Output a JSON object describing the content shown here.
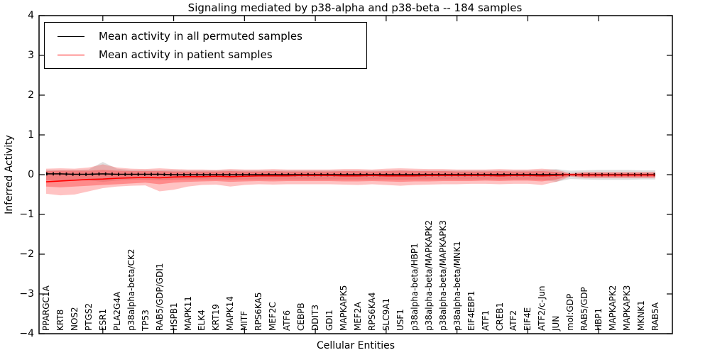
{
  "chart_data": {
    "type": "line",
    "title": "Signaling mediated by p38-alpha and p38-beta -- 184 samples",
    "xlabel": "Cellular Entities",
    "ylabel": "Inferred Activity",
    "ylim": [
      -4,
      4
    ],
    "yticks": [
      4,
      3,
      2,
      1,
      0,
      -1,
      -2,
      -3,
      -4
    ],
    "ytick_labels": [
      "4",
      "3",
      "2",
      "1",
      "0",
      "−1",
      "−2",
      "−3",
      "−4"
    ],
    "x_tick_every": 5,
    "grid": false,
    "legend_position": "upper-left",
    "legend": [
      {
        "label": "Mean activity in all permuted samples",
        "color": "#000000"
      },
      {
        "label": "Mean activity in patient samples",
        "color": "#ff0000"
      }
    ],
    "categories": [
      "PPARGC1A",
      "KRT8",
      "NOS2",
      "PTGS2",
      "ESR1",
      "PLA2G4A",
      "p38alpha-beta/CK2",
      "TP53",
      "RAB5/GDP/GDI1",
      "HSPB1",
      "MAPK11",
      "ELK4",
      "KRT19",
      "MAPK14",
      "MITF",
      "RPS6KA5",
      "MEF2C",
      "ATF6",
      "CEBPB",
      "DDIT3",
      "GDI1",
      "MAPKAPK5",
      "MEF2A",
      "RPS6KA4",
      "SLC9A1",
      "USF1",
      "p38alpha-beta/HBP1",
      "p38alpha-beta/MAPKAPK2",
      "p38alpha-beta/MAPKAPK3",
      "p38alpha-beta/MNK1",
      "EIF4EBP1",
      "ATF1",
      "CREB1",
      "ATF2",
      "EIF4E",
      "ATF2/c-Jun",
      "JUN",
      "mol:GDP",
      "RAB5/GDP",
      "HBP1",
      "MAPKAPK2",
      "MAPKAPK3",
      "MKNK1",
      "RAB5A"
    ],
    "series": [
      {
        "name": "Mean activity in all permuted samples",
        "color": "#000000",
        "values": [
          0.02,
          0.02,
          0.01,
          0.01,
          0.02,
          0.01,
          0.01,
          0.01,
          0.01,
          0.0,
          0.0,
          0.0,
          0.0,
          0.0,
          0.0,
          0.0,
          0.0,
          0.0,
          0.0,
          0.0,
          0.0,
          0.0,
          0.0,
          0.0,
          0.0,
          0.0,
          0.0,
          0.0,
          0.0,
          0.0,
          0.0,
          0.0,
          0.0,
          0.0,
          0.0,
          0.0,
          0.0,
          0.0,
          0.0,
          0.0,
          0.0,
          0.0,
          0.0,
          0.0
        ]
      },
      {
        "name": "Mean activity in patient samples",
        "color": "#ff0000",
        "values": [
          -0.18,
          -0.16,
          -0.14,
          -0.12,
          -0.11,
          -0.09,
          -0.08,
          -0.07,
          -0.08,
          -0.06,
          -0.05,
          -0.05,
          -0.04,
          -0.05,
          -0.04,
          -0.03,
          -0.03,
          -0.03,
          -0.02,
          -0.02,
          -0.02,
          -0.03,
          -0.03,
          -0.02,
          -0.03,
          -0.03,
          -0.03,
          -0.02,
          -0.02,
          -0.02,
          -0.02,
          -0.02,
          -0.03,
          -0.02,
          -0.02,
          -0.03,
          -0.02,
          0.0,
          -0.01,
          -0.01,
          -0.01,
          -0.01,
          -0.01,
          -0.01
        ]
      }
    ],
    "bands": [
      {
        "name": "permuted-samples-range",
        "fill": "rgba(140,140,140,0.28)",
        "upper": [
          0.12,
          0.12,
          0.12,
          0.13,
          0.32,
          0.15,
          0.12,
          0.12,
          0.12,
          0.12,
          0.11,
          0.11,
          0.11,
          0.12,
          0.11,
          0.11,
          0.11,
          0.11,
          0.11,
          0.11,
          0.11,
          0.11,
          0.11,
          0.11,
          0.11,
          0.12,
          0.11,
          0.11,
          0.11,
          0.11,
          0.11,
          0.11,
          0.11,
          0.11,
          0.11,
          0.12,
          0.14,
          0.1,
          0.11,
          0.12,
          0.12,
          0.12,
          0.11,
          0.11
        ],
        "lower": [
          -0.14,
          -0.15,
          -0.14,
          -0.14,
          -0.18,
          -0.15,
          -0.13,
          -0.13,
          -0.14,
          -0.13,
          -0.12,
          -0.12,
          -0.12,
          -0.13,
          -0.12,
          -0.12,
          -0.12,
          -0.12,
          -0.12,
          -0.12,
          -0.12,
          -0.12,
          -0.12,
          -0.12,
          -0.12,
          -0.13,
          -0.12,
          -0.12,
          -0.12,
          -0.12,
          -0.12,
          -0.12,
          -0.12,
          -0.12,
          -0.12,
          -0.13,
          -0.18,
          -0.11,
          -0.12,
          -0.13,
          -0.13,
          -0.13,
          -0.12,
          -0.12
        ]
      },
      {
        "name": "patient-samples-outer-range",
        "fill": "rgba(255,55,55,0.30)",
        "upper": [
          0.15,
          0.16,
          0.15,
          0.18,
          0.26,
          0.18,
          0.15,
          0.14,
          0.16,
          0.14,
          0.13,
          0.13,
          0.12,
          0.14,
          0.13,
          0.13,
          0.14,
          0.13,
          0.13,
          0.13,
          0.13,
          0.14,
          0.14,
          0.13,
          0.15,
          0.16,
          0.15,
          0.14,
          0.14,
          0.13,
          0.13,
          0.13,
          0.14,
          0.13,
          0.13,
          0.15,
          0.12,
          0.04,
          0.07,
          0.07,
          0.07,
          0.07,
          0.07,
          0.07
        ],
        "lower": [
          -0.48,
          -0.52,
          -0.5,
          -0.42,
          -0.34,
          -0.3,
          -0.28,
          -0.27,
          -0.42,
          -0.38,
          -0.3,
          -0.26,
          -0.25,
          -0.3,
          -0.26,
          -0.24,
          -0.25,
          -0.24,
          -0.24,
          -0.24,
          -0.24,
          -0.25,
          -0.26,
          -0.24,
          -0.26,
          -0.28,
          -0.26,
          -0.25,
          -0.24,
          -0.24,
          -0.23,
          -0.23,
          -0.24,
          -0.23,
          -0.23,
          -0.26,
          -0.18,
          -0.05,
          -0.09,
          -0.09,
          -0.09,
          -0.09,
          -0.09,
          -0.09
        ]
      },
      {
        "name": "patient-samples-inner-range",
        "fill": "rgba(255,55,55,0.40)",
        "upper": [
          0.09,
          0.1,
          0.1,
          0.1,
          0.12,
          0.1,
          0.09,
          0.09,
          0.09,
          0.08,
          0.08,
          0.08,
          0.08,
          0.09,
          0.08,
          0.08,
          0.09,
          0.08,
          0.08,
          0.08,
          0.08,
          0.09,
          0.09,
          0.08,
          0.09,
          0.1,
          0.09,
          0.09,
          0.09,
          0.08,
          0.08,
          0.08,
          0.09,
          0.08,
          0.08,
          0.09,
          0.07,
          0.02,
          0.04,
          0.04,
          0.04,
          0.04,
          0.04,
          0.04
        ],
        "lower": [
          -0.3,
          -0.32,
          -0.3,
          -0.28,
          -0.26,
          -0.24,
          -0.22,
          -0.2,
          -0.24,
          -0.2,
          -0.18,
          -0.17,
          -0.16,
          -0.18,
          -0.17,
          -0.16,
          -0.17,
          -0.16,
          -0.16,
          -0.16,
          -0.16,
          -0.17,
          -0.17,
          -0.16,
          -0.17,
          -0.18,
          -0.17,
          -0.17,
          -0.16,
          -0.16,
          -0.16,
          -0.15,
          -0.16,
          -0.15,
          -0.15,
          -0.17,
          -0.12,
          -0.03,
          -0.06,
          -0.06,
          -0.06,
          -0.06,
          -0.06,
          -0.06
        ]
      }
    ]
  }
}
